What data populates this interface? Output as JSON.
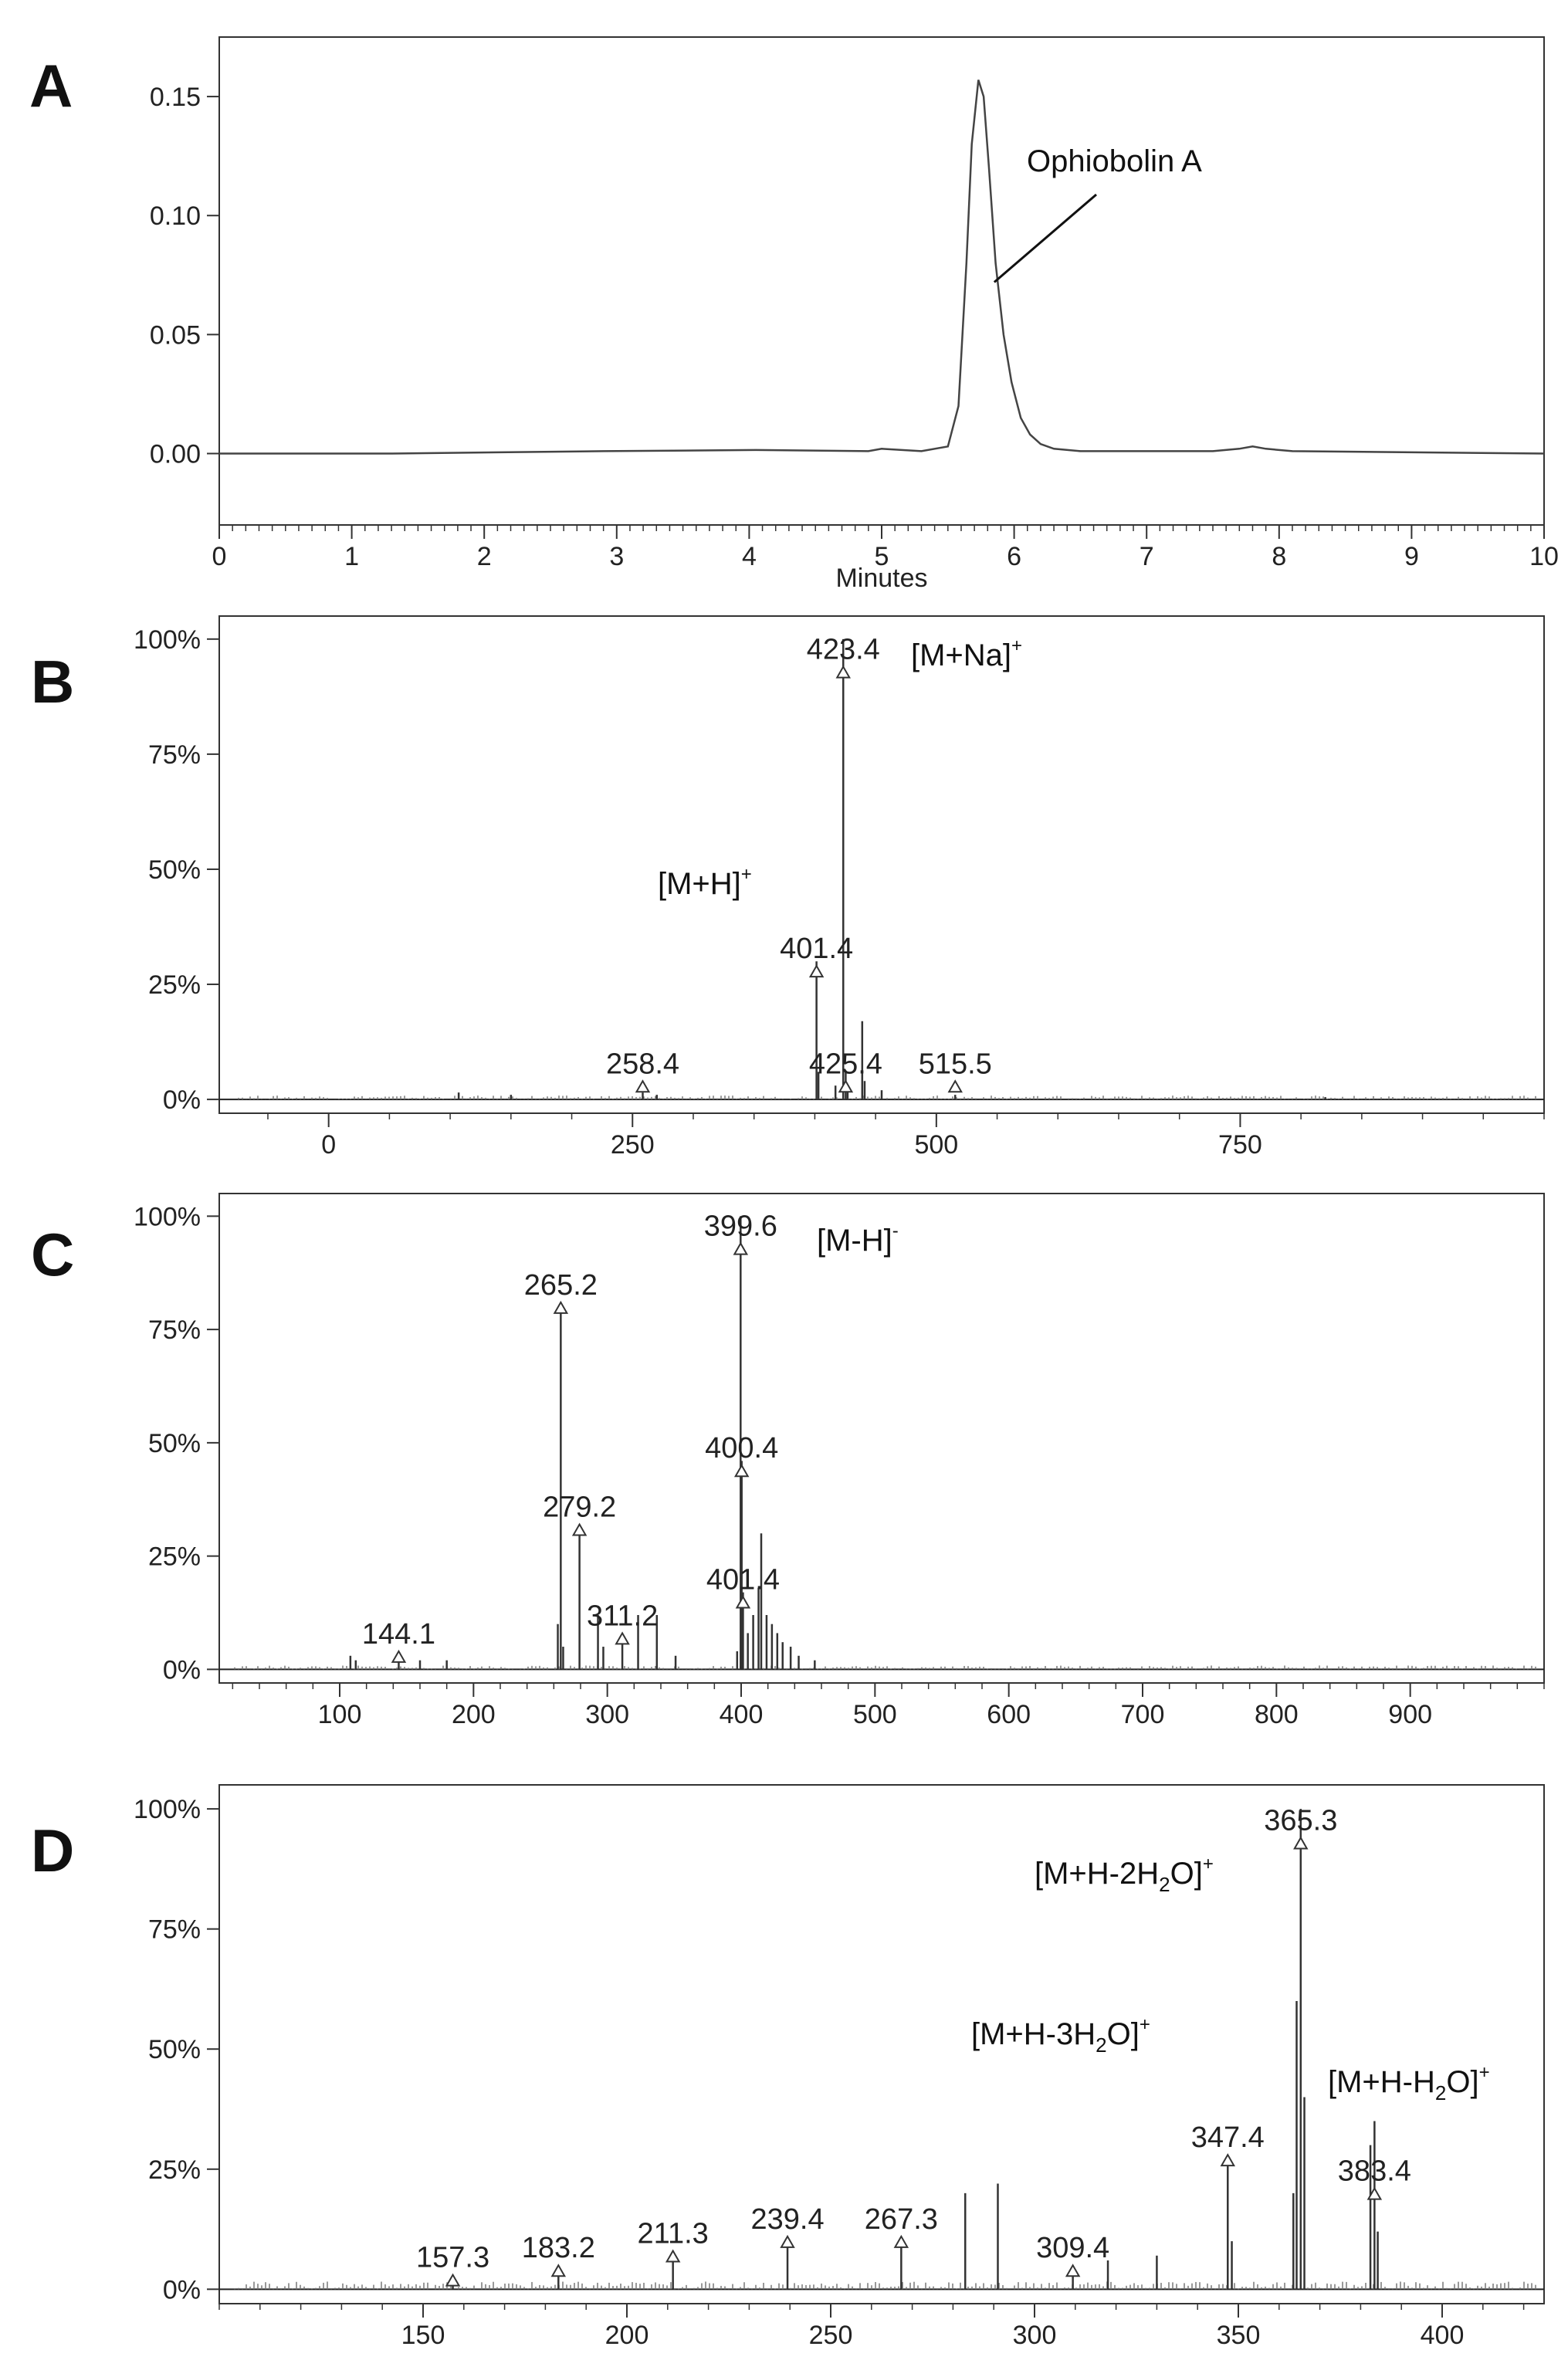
{
  "chart_data": [
    {
      "panel": "A",
      "type": "line",
      "xlabel": "Minutes",
      "xlim": [
        0,
        10
      ],
      "ylim": [
        -0.03,
        0.175
      ],
      "xticks": [
        "0",
        "1",
        "2",
        "3",
        "4",
        "5",
        "6",
        "7",
        "8",
        "9",
        "10"
      ],
      "yticks": [
        "0.00",
        "0.05",
        "0.10",
        "0.15"
      ],
      "x": [
        0,
        1.3,
        2.9,
        4.05,
        4.9,
        5.0,
        5.3,
        5.5,
        5.58,
        5.64,
        5.68,
        5.73,
        5.77,
        5.81,
        5.86,
        5.92,
        5.98,
        6.05,
        6.12,
        6.2,
        6.3,
        6.5,
        7.5,
        7.7,
        7.8,
        7.9,
        8.1,
        10
      ],
      "y": [
        0,
        0,
        0.001,
        0.0015,
        0.001,
        0.002,
        0.001,
        0.003,
        0.02,
        0.08,
        0.13,
        0.157,
        0.15,
        0.12,
        0.08,
        0.05,
        0.03,
        0.015,
        0.008,
        0.004,
        0.002,
        0.001,
        0.001,
        0.002,
        0.003,
        0.002,
        0.001,
        0
      ],
      "annotations": [
        {
          "text": "Ophiobolin A",
          "x": 5.85,
          "y": 0.072
        }
      ]
    },
    {
      "panel": "B",
      "type": "bar",
      "xlim": [
        -90,
        1000
      ],
      "ylim": [
        -3,
        105
      ],
      "xticks": [
        "0",
        "250",
        "500",
        "750"
      ],
      "yticks": [
        "0%",
        "25%",
        "50%",
        "75%",
        "100%"
      ],
      "peaks": [
        {
          "mz": 107,
          "rel": 1.5
        },
        {
          "mz": 150,
          "rel": 1
        },
        {
          "mz": 258.4,
          "rel": 1.5
        },
        {
          "mz": 270,
          "rel": 1
        },
        {
          "mz": 401.4,
          "rel": 30
        },
        {
          "mz": 403,
          "rel": 6
        },
        {
          "mz": 417,
          "rel": 3
        },
        {
          "mz": 423.4,
          "rel": 100
        },
        {
          "mz": 425.4,
          "rel": 6
        },
        {
          "mz": 427,
          "rel": 3
        },
        {
          "mz": 439,
          "rel": 17
        },
        {
          "mz": 441,
          "rel": 4
        },
        {
          "mz": 455,
          "rel": 2
        },
        {
          "mz": 515.5,
          "rel": 1
        },
        {
          "mz": 820,
          "rel": 0.5
        }
      ],
      "labels": [
        {
          "text": "423.4",
          "mz": 423.4,
          "rel": 94
        },
        {
          "text": "401.4",
          "mz": 401.4,
          "rel": 29
        },
        {
          "text": "258.4",
          "mz": 258.4,
          "rel": 4
        },
        {
          "text": "425.4",
          "mz": 425.4,
          "rel": 4
        },
        {
          "text": "515.5",
          "mz": 515.5,
          "rel": 4
        }
      ],
      "ions": [
        {
          "base": "[M+Na]",
          "sup": "+"
        },
        {
          "base": "[M+H]",
          "sup": "+"
        }
      ]
    },
    {
      "panel": "C",
      "type": "bar",
      "xlim": [
        10,
        1000
      ],
      "ylim": [
        -3,
        105
      ],
      "xticks": [
        "100",
        "200",
        "300",
        "400",
        "500",
        "600",
        "700",
        "800",
        "900"
      ],
      "yticks": [
        "0%",
        "25%",
        "50%",
        "75%",
        "100%"
      ],
      "peaks": [
        {
          "mz": 108,
          "rel": 3
        },
        {
          "mz": 112,
          "rel": 2
        },
        {
          "mz": 144.1,
          "rel": 3
        },
        {
          "mz": 160,
          "rel": 2
        },
        {
          "mz": 180,
          "rel": 2
        },
        {
          "mz": 263,
          "rel": 10
        },
        {
          "mz": 265.2,
          "rel": 81
        },
        {
          "mz": 267,
          "rel": 5
        },
        {
          "mz": 279.2,
          "rel": 32
        },
        {
          "mz": 293,
          "rel": 12
        },
        {
          "mz": 297,
          "rel": 5
        },
        {
          "mz": 311.2,
          "rel": 7
        },
        {
          "mz": 323,
          "rel": 12
        },
        {
          "mz": 337,
          "rel": 12
        },
        {
          "mz": 351,
          "rel": 3
        },
        {
          "mz": 397,
          "rel": 4
        },
        {
          "mz": 399.6,
          "rel": 100
        },
        {
          "mz": 400.4,
          "rel": 46
        },
        {
          "mz": 401.4,
          "rel": 17
        },
        {
          "mz": 405,
          "rel": 8
        },
        {
          "mz": 409,
          "rel": 12
        },
        {
          "mz": 413,
          "rel": 18
        },
        {
          "mz": 415,
          "rel": 30
        },
        {
          "mz": 419,
          "rel": 12
        },
        {
          "mz": 423,
          "rel": 10
        },
        {
          "mz": 427,
          "rel": 8
        },
        {
          "mz": 431,
          "rel": 6
        },
        {
          "mz": 437,
          "rel": 5
        },
        {
          "mz": 443,
          "rel": 3
        },
        {
          "mz": 455,
          "rel": 2
        }
      ],
      "labels": [
        {
          "text": "399.6",
          "mz": 399.6,
          "rel": 94
        },
        {
          "text": "265.2",
          "mz": 265.2,
          "rel": 81
        },
        {
          "text": "400.4",
          "mz": 400.4,
          "rel": 45
        },
        {
          "text": "279.2",
          "mz": 279.2,
          "rel": 32
        },
        {
          "text": "401.4",
          "mz": 401.4,
          "rel": 16
        },
        {
          "text": "311.2",
          "mz": 311.2,
          "rel": 8
        },
        {
          "text": "144.1",
          "mz": 144.1,
          "rel": 4
        }
      ],
      "ions": [
        {
          "base": "[M-H]",
          "sup": "-"
        }
      ]
    },
    {
      "panel": "D",
      "type": "bar",
      "xlim": [
        100,
        425
      ],
      "ylim": [
        -3,
        105
      ],
      "xticks": [
        "150",
        "200",
        "250",
        "300",
        "350",
        "400"
      ],
      "yticks": [
        "0%",
        "25%",
        "50%",
        "75%",
        "100%"
      ],
      "peaks": [
        {
          "mz": 157.3,
          "rel": 2
        },
        {
          "mz": 183.2,
          "rel": 3
        },
        {
          "mz": 211.3,
          "rel": 6
        },
        {
          "mz": 239.4,
          "rel": 9
        },
        {
          "mz": 267.3,
          "rel": 9
        },
        {
          "mz": 283,
          "rel": 20
        },
        {
          "mz": 291,
          "rel": 22
        },
        {
          "mz": 309.4,
          "rel": 3
        },
        {
          "mz": 318,
          "rel": 6
        },
        {
          "mz": 330,
          "rel": 7
        },
        {
          "mz": 347.4,
          "rel": 27
        },
        {
          "mz": 348.4,
          "rel": 10
        },
        {
          "mz": 363.5,
          "rel": 20
        },
        {
          "mz": 364.3,
          "rel": 60
        },
        {
          "mz": 365.3,
          "rel": 100
        },
        {
          "mz": 366.2,
          "rel": 40
        },
        {
          "mz": 382.4,
          "rel": 30
        },
        {
          "mz": 383.4,
          "rel": 35
        },
        {
          "mz": 384.2,
          "rel": 12
        }
      ],
      "labels": [
        {
          "text": "365.3",
          "mz": 365.3,
          "rel": 94
        },
        {
          "text": "347.4",
          "mz": 347.4,
          "rel": 28
        },
        {
          "text": "383.4",
          "mz": 383.4,
          "rel": 21
        },
        {
          "text": "267.3",
          "mz": 267.3,
          "rel": 11
        },
        {
          "text": "239.4",
          "mz": 239.4,
          "rel": 11
        },
        {
          "text": "211.3",
          "mz": 211.3,
          "rel": 8
        },
        {
          "text": "309.4",
          "mz": 309.4,
          "rel": 5
        },
        {
          "text": "183.2",
          "mz": 183.2,
          "rel": 5
        },
        {
          "text": "157.3",
          "mz": 157.3,
          "rel": 3
        }
      ],
      "ions": [
        {
          "base": "[M+H-2H",
          "sub": "2",
          "tail": "O]",
          "sup": "+"
        },
        {
          "base": "[M+H-3H",
          "sub": "2",
          "tail": "O]",
          "sup": "+"
        },
        {
          "base": "[M+H-H",
          "sub": "2",
          "tail": "O]",
          "sup": "+"
        }
      ]
    }
  ]
}
